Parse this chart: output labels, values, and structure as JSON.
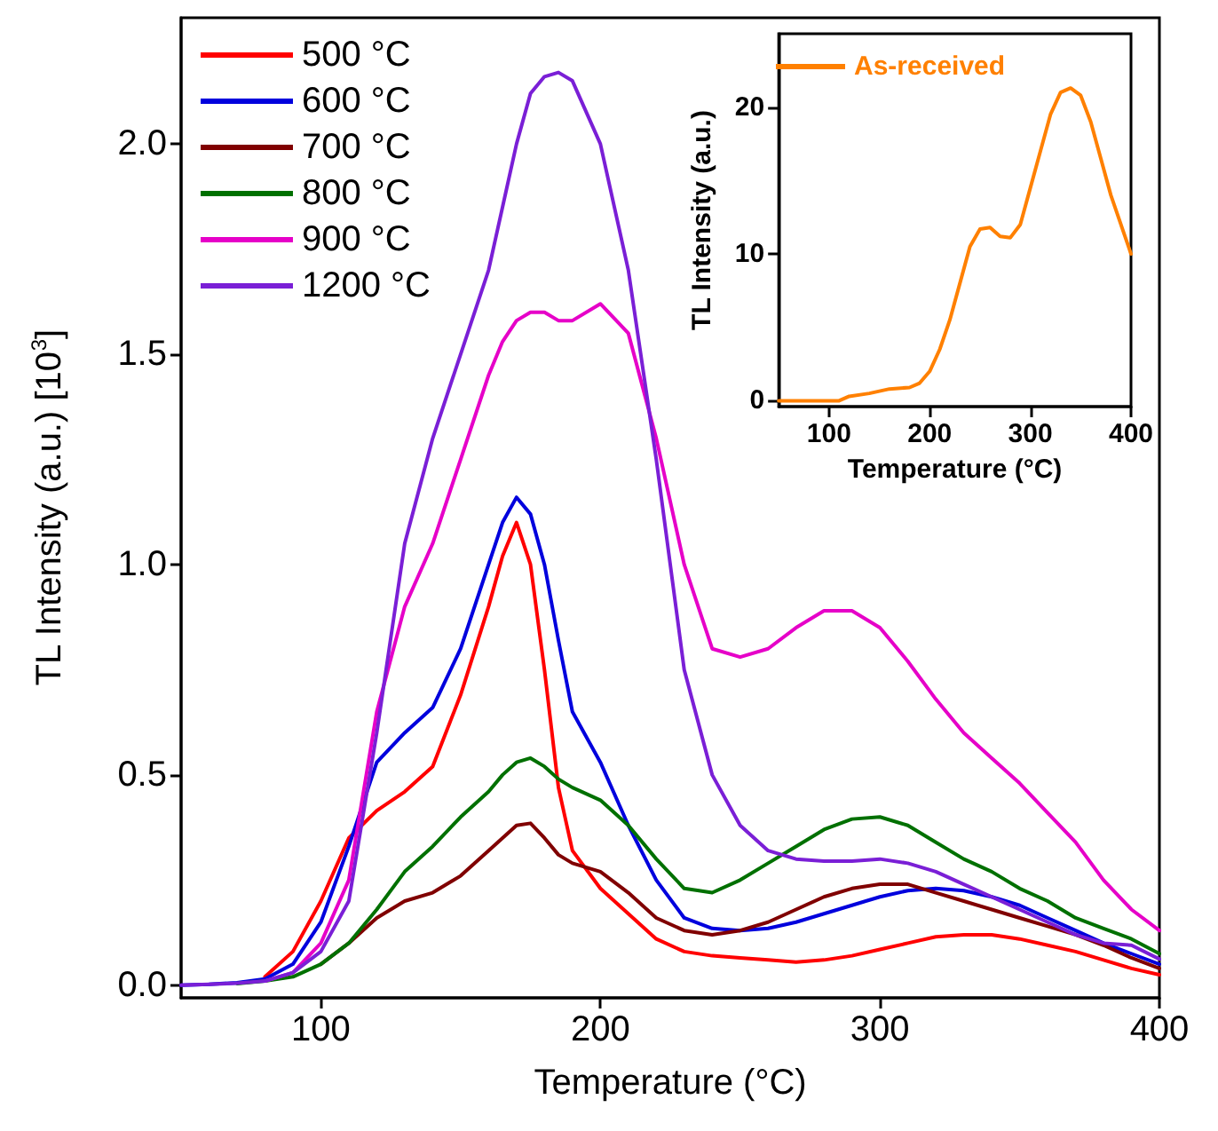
{
  "chart_data": [
    {
      "type": "line",
      "xlabel": "Temperature (°C)",
      "ylabel": "TL Intensity (a.u.) [10$^{3}$]",
      "xlim": [
        50,
        400
      ],
      "ylim": [
        -0.03,
        2.3
      ],
      "xticks": [
        100,
        200,
        300,
        400
      ],
      "yticks": [
        {
          "value": 0,
          "label": "0.0"
        },
        {
          "value": 0.5,
          "label": "0.5"
        },
        {
          "value": 1,
          "label": "1.0"
        },
        {
          "value": 1.5,
          "label": "1.5"
        },
        {
          "value": 2,
          "label": "2.0"
        }
      ],
      "grid": false,
      "legend": "top left",
      "marker": "none",
      "line_style": "solid",
      "x": [
        50,
        60,
        70,
        80,
        90,
        100,
        110,
        120,
        130,
        140,
        150,
        160,
        165,
        170,
        175,
        180,
        185,
        190,
        200,
        210,
        220,
        230,
        240,
        250,
        260,
        270,
        280,
        290,
        300,
        310,
        320,
        330,
        340,
        350,
        360,
        370,
        380,
        390,
        400
      ],
      "series": [
        {
          "name": "500 °C",
          "color": "#ff0000",
          "values": [
            null,
            null,
            null,
            0.02,
            0.08,
            0.2,
            0.35,
            0.415,
            0.46,
            0.52,
            0.69,
            0.9,
            1.02,
            1.1,
            1.0,
            0.75,
            0.47,
            0.32,
            0.23,
            0.17,
            0.11,
            0.08,
            0.07,
            0.065,
            0.06,
            0.055,
            0.06,
            0.07,
            0.085,
            0.1,
            0.115,
            0.12,
            0.12,
            0.11,
            0.095,
            0.08,
            0.06,
            0.04,
            0.025
          ]
        },
        {
          "name": "600 °C",
          "color": "#0000dd",
          "values": [
            0,
            0.002,
            0.006,
            0.015,
            0.05,
            0.15,
            0.33,
            0.53,
            0.6,
            0.66,
            0.8,
            1.0,
            1.1,
            1.16,
            1.12,
            1.0,
            0.82,
            0.65,
            0.53,
            0.38,
            0.25,
            0.16,
            0.135,
            0.13,
            0.135,
            0.15,
            0.17,
            0.19,
            0.21,
            0.225,
            0.23,
            0.225,
            0.21,
            0.19,
            0.16,
            0.13,
            0.1,
            0.075,
            0.05
          ]
        },
        {
          "name": "700 °C",
          "color": "#800000",
          "values": [
            null,
            null,
            null,
            null,
            null,
            0.05,
            0.1,
            0.16,
            0.2,
            0.22,
            0.26,
            0.32,
            0.35,
            0.38,
            0.385,
            0.35,
            0.31,
            0.29,
            0.27,
            0.22,
            0.16,
            0.13,
            0.12,
            0.13,
            0.15,
            0.18,
            0.21,
            0.23,
            0.24,
            0.24,
            0.22,
            0.2,
            0.18,
            0.16,
            0.14,
            0.12,
            0.095,
            0.065,
            0.04
          ]
        },
        {
          "name": "800 °C",
          "color": "#007000",
          "values": [
            null,
            null,
            0.004,
            0.01,
            0.02,
            0.05,
            0.1,
            0.18,
            0.27,
            0.33,
            0.4,
            0.46,
            0.5,
            0.53,
            0.54,
            0.52,
            0.49,
            0.47,
            0.44,
            0.38,
            0.3,
            0.23,
            0.22,
            0.25,
            0.29,
            0.33,
            0.37,
            0.395,
            0.4,
            0.38,
            0.34,
            0.3,
            0.27,
            0.23,
            0.2,
            0.16,
            0.135,
            0.11,
            0.075
          ]
        },
        {
          "name": "900 °C",
          "color": "#e600c8",
          "values": [
            null,
            null,
            null,
            0.01,
            0.03,
            0.1,
            0.25,
            0.65,
            0.9,
            1.05,
            1.25,
            1.45,
            1.53,
            1.58,
            1.6,
            1.6,
            1.58,
            1.58,
            1.62,
            1.55,
            1.3,
            1.0,
            0.8,
            0.78,
            0.8,
            0.85,
            0.89,
            0.89,
            0.85,
            0.77,
            0.68,
            0.6,
            0.54,
            0.48,
            0.41,
            0.34,
            0.25,
            0.18,
            0.13
          ]
        },
        {
          "name": "1200 °C",
          "color": "#7a1fd6",
          "values": [
            0,
            0.002,
            0.005,
            0.01,
            0.03,
            0.08,
            0.2,
            0.6,
            1.05,
            1.3,
            1.5,
            1.7,
            1.85,
            2.0,
            2.12,
            2.16,
            2.17,
            2.15,
            2.0,
            1.7,
            1.25,
            0.75,
            0.5,
            0.38,
            0.32,
            0.3,
            0.295,
            0.295,
            0.3,
            0.29,
            0.27,
            0.24,
            0.21,
            0.18,
            0.15,
            0.12,
            0.1,
            0.095,
            0.062
          ]
        }
      ]
    },
    {
      "type": "line",
      "xlabel": "Temperature (°C)",
      "ylabel": "TL Intensity (a.u.)",
      "xlim": [
        50,
        400
      ],
      "ylim": [
        -0.4,
        25
      ],
      "xticks": [
        100,
        200,
        300,
        400
      ],
      "yticks": [
        0,
        10,
        20
      ],
      "grid": false,
      "legend": "top left",
      "marker": "none",
      "line_style": "solid",
      "x": [
        50,
        100,
        110,
        120,
        140,
        160,
        180,
        190,
        200,
        210,
        220,
        230,
        240,
        250,
        260,
        270,
        280,
        290,
        300,
        310,
        320,
        330,
        340,
        350,
        360,
        370,
        380,
        390,
        400
      ],
      "series": [
        {
          "name": "As-received",
          "color": "#ff8000",
          "values": [
            0,
            0,
            0,
            0.3,
            0.5,
            0.8,
            0.9,
            1.2,
            2,
            3.5,
            5.5,
            8,
            10.5,
            11.7,
            11.8,
            11.2,
            11.1,
            12,
            14.5,
            17,
            19.5,
            21,
            21.3,
            20.8,
            19,
            16.5,
            14,
            12,
            10
          ]
        }
      ]
    }
  ]
}
